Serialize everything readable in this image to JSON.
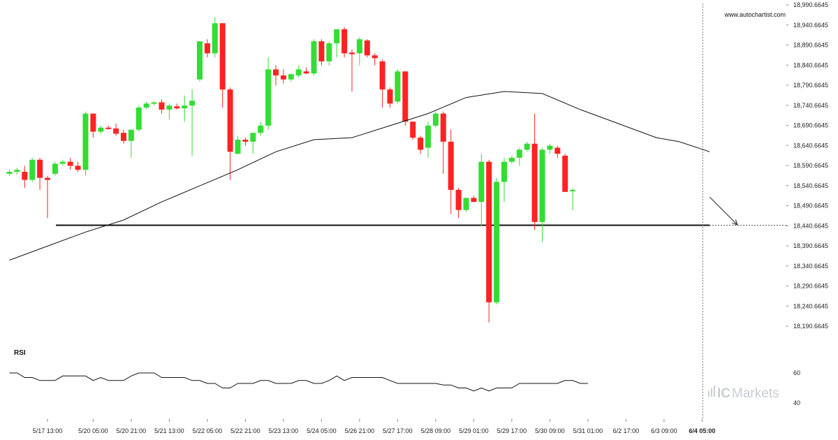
{
  "chart_data": [
    {
      "type": "candlestick",
      "source_label": "www.autochartist.com",
      "y_tick_labels": [
        "18,990.6645",
        "18,940.6645",
        "18,890.6645",
        "18,840.6645",
        "18,790.6645",
        "18,740.6645",
        "18,690.6645",
        "18,640.6645",
        "18,590.6645",
        "18,540.6645",
        "18,490.6645",
        "18,440.6645",
        "18,390.6645",
        "18,340.6645",
        "18,290.6645",
        "18,240.6645",
        "18,190.6645"
      ],
      "ylim": [
        18180,
        18995
      ],
      "x_tick_labels": [
        "5/17 13:00",
        "5/20 05:00",
        "5/20 21:00",
        "5/21 13:00",
        "5/22 05:00",
        "5/22 21:00",
        "5/23 13:00",
        "5/24 05:00",
        "5/26 21:00",
        "5/27 17:00",
        "5/28 09:00",
        "5/29 01:00",
        "5/29 17:00",
        "5/30 09:00",
        "5/31 01:00",
        "6/2 17:00",
        "6/3 09:00",
        "6/4 05:00"
      ],
      "x_tick_bar_index": [
        5,
        11,
        16,
        21,
        26,
        31,
        36,
        41,
        46,
        51,
        56,
        61,
        66,
        71,
        76,
        81,
        86,
        91
      ],
      "candles": [
        {
          "o": 18570,
          "h": 18580,
          "l": 18565,
          "c": 18575
        },
        {
          "o": 18575,
          "h": 18585,
          "l": 18568,
          "c": 18580
        },
        {
          "o": 18575,
          "h": 18590,
          "l": 18535,
          "c": 18555
        },
        {
          "o": 18555,
          "h": 18610,
          "l": 18550,
          "c": 18605
        },
        {
          "o": 18605,
          "h": 18610,
          "l": 18530,
          "c": 18560
        },
        {
          "o": 18560,
          "h": 18565,
          "l": 18460,
          "c": 18555
        },
        {
          "o": 18570,
          "h": 18600,
          "l": 18565,
          "c": 18595
        },
        {
          "o": 18595,
          "h": 18605,
          "l": 18590,
          "c": 18600
        },
        {
          "o": 18600,
          "h": 18610,
          "l": 18580,
          "c": 18590
        },
        {
          "o": 18590,
          "h": 18600,
          "l": 18575,
          "c": 18580
        },
        {
          "o": 18580,
          "h": 18725,
          "l": 18565,
          "c": 18720
        },
        {
          "o": 18720,
          "h": 18720,
          "l": 18660,
          "c": 18675
        },
        {
          "o": 18675,
          "h": 18690,
          "l": 18670,
          "c": 18685
        },
        {
          "o": 18685,
          "h": 18690,
          "l": 18680,
          "c": 18683
        },
        {
          "o": 18683,
          "h": 18695,
          "l": 18665,
          "c": 18670
        },
        {
          "o": 18672,
          "h": 18680,
          "l": 18645,
          "c": 18652
        },
        {
          "o": 18652,
          "h": 18680,
          "l": 18610,
          "c": 18680
        },
        {
          "o": 18680,
          "h": 18740,
          "l": 18675,
          "c": 18735
        },
        {
          "o": 18735,
          "h": 18750,
          "l": 18730,
          "c": 18745
        },
        {
          "o": 18745,
          "h": 18750,
          "l": 18740,
          "c": 18748
        },
        {
          "o": 18748,
          "h": 18755,
          "l": 18720,
          "c": 18730
        },
        {
          "o": 18730,
          "h": 18745,
          "l": 18705,
          "c": 18740
        },
        {
          "o": 18738,
          "h": 18745,
          "l": 18730,
          "c": 18733
        },
        {
          "o": 18733,
          "h": 18765,
          "l": 18700,
          "c": 18740
        },
        {
          "o": 18740,
          "h": 18780,
          "l": 18615,
          "c": 18752
        },
        {
          "o": 18805,
          "h": 18900,
          "l": 18800,
          "c": 18900
        },
        {
          "o": 18895,
          "h": 18905,
          "l": 18860,
          "c": 18870
        },
        {
          "o": 18870,
          "h": 18960,
          "l": 18860,
          "c": 18945
        },
        {
          "o": 18945,
          "h": 18945,
          "l": 18735,
          "c": 18780
        },
        {
          "o": 18780,
          "h": 18785,
          "l": 18555,
          "c": 18625
        },
        {
          "o": 18620,
          "h": 18665,
          "l": 18618,
          "c": 18655
        },
        {
          "o": 18655,
          "h": 18660,
          "l": 18640,
          "c": 18650
        },
        {
          "o": 18650,
          "h": 18670,
          "l": 18620,
          "c": 18672
        },
        {
          "o": 18672,
          "h": 18700,
          "l": 18665,
          "c": 18690
        },
        {
          "o": 18690,
          "h": 18860,
          "l": 18680,
          "c": 18830
        },
        {
          "o": 18830,
          "h": 18840,
          "l": 18790,
          "c": 18815
        },
        {
          "o": 18815,
          "h": 18830,
          "l": 18795,
          "c": 18805
        },
        {
          "o": 18805,
          "h": 18820,
          "l": 18800,
          "c": 18818
        },
        {
          "o": 18815,
          "h": 18840,
          "l": 18810,
          "c": 18830
        },
        {
          "o": 18825,
          "h": 18835,
          "l": 18818,
          "c": 18820
        },
        {
          "o": 18820,
          "h": 18905,
          "l": 18815,
          "c": 18900
        },
        {
          "o": 18900,
          "h": 18905,
          "l": 18840,
          "c": 18850
        },
        {
          "o": 18850,
          "h": 18900,
          "l": 18840,
          "c": 18895
        },
        {
          "o": 18895,
          "h": 18930,
          "l": 18860,
          "c": 18930
        },
        {
          "o": 18930,
          "h": 18935,
          "l": 18860,
          "c": 18870
        },
        {
          "o": 18872,
          "h": 18880,
          "l": 18775,
          "c": 18868
        },
        {
          "o": 18870,
          "h": 18910,
          "l": 18840,
          "c": 18905
        },
        {
          "o": 18902,
          "h": 18905,
          "l": 18860,
          "c": 18865
        },
        {
          "o": 18865,
          "h": 18870,
          "l": 18840,
          "c": 18858
        },
        {
          "o": 18850,
          "h": 18855,
          "l": 18735,
          "c": 18780
        },
        {
          "o": 18780,
          "h": 18785,
          "l": 18735,
          "c": 18745
        },
        {
          "o": 18750,
          "h": 18830,
          "l": 18745,
          "c": 18825
        },
        {
          "o": 18825,
          "h": 18825,
          "l": 18690,
          "c": 18700
        },
        {
          "o": 18700,
          "h": 18700,
          "l": 18655,
          "c": 18660
        },
        {
          "o": 18660,
          "h": 18665,
          "l": 18620,
          "c": 18630
        },
        {
          "o": 18635,
          "h": 18700,
          "l": 18610,
          "c": 18690
        },
        {
          "o": 18690,
          "h": 18725,
          "l": 18685,
          "c": 18720
        },
        {
          "o": 18720,
          "h": 18725,
          "l": 18570,
          "c": 18650
        },
        {
          "o": 18650,
          "h": 18680,
          "l": 18470,
          "c": 18530
        },
        {
          "o": 18530,
          "h": 18535,
          "l": 18460,
          "c": 18480
        },
        {
          "o": 18480,
          "h": 18510,
          "l": 18475,
          "c": 18510
        },
        {
          "o": 18510,
          "h": 18515,
          "l": 18500,
          "c": 18500
        },
        {
          "o": 18500,
          "h": 18620,
          "l": 18440,
          "c": 18600
        },
        {
          "o": 18600,
          "h": 18605,
          "l": 18200,
          "c": 18250
        },
        {
          "o": 18250,
          "h": 18560,
          "l": 18245,
          "c": 18550
        },
        {
          "o": 18550,
          "h": 18610,
          "l": 18500,
          "c": 18600
        },
        {
          "o": 18600,
          "h": 18615,
          "l": 18595,
          "c": 18610
        },
        {
          "o": 18610,
          "h": 18635,
          "l": 18590,
          "c": 18630
        },
        {
          "o": 18630,
          "h": 18650,
          "l": 18625,
          "c": 18645
        },
        {
          "o": 18645,
          "h": 18720,
          "l": 18430,
          "c": 18450
        },
        {
          "o": 18450,
          "h": 18635,
          "l": 18400,
          "c": 18630
        },
        {
          "o": 18630,
          "h": 18645,
          "l": 18620,
          "c": 18640
        },
        {
          "o": 18635,
          "h": 18640,
          "l": 18610,
          "c": 18620
        },
        {
          "o": 18615,
          "h": 18620,
          "l": 18525,
          "c": 18525
        },
        {
          "o": 18528,
          "h": 18535,
          "l": 18480,
          "c": 18530
        }
      ],
      "moving_average": [
        [
          0,
          18355
        ],
        [
          5,
          18390
        ],
        [
          10,
          18425
        ],
        [
          15,
          18455
        ],
        [
          20,
          18500
        ],
        [
          25,
          18540
        ],
        [
          30,
          18580
        ],
        [
          35,
          18625
        ],
        [
          40,
          18655
        ],
        [
          45,
          18660
        ],
        [
          50,
          18690
        ],
        [
          55,
          18720
        ],
        [
          60,
          18760
        ],
        [
          65,
          18775
        ],
        [
          70,
          18770
        ],
        [
          75,
          18730
        ],
        [
          80,
          18695
        ],
        [
          85,
          18660
        ],
        [
          88,
          18650
        ],
        [
          92,
          18625
        ]
      ],
      "support_level": 18442,
      "forecast": {
        "from": [
          92,
          18512
        ],
        "to": [
          96,
          18443
        ]
      },
      "last_bar_index": 91,
      "colors": {
        "bull": "#33dd33",
        "bear": "#ff2222",
        "ma": "#111111",
        "support": "#111111"
      }
    },
    {
      "type": "line",
      "label": "RSI",
      "y_tick_labels": [
        "60",
        "40"
      ],
      "ylim": [
        30,
        70
      ],
      "values": [
        60,
        60,
        57,
        57,
        55,
        55,
        55,
        58,
        58,
        58,
        58,
        55,
        57,
        55,
        55,
        55,
        58,
        60,
        60,
        60,
        57,
        57,
        57,
        57,
        55,
        55,
        53,
        53,
        50,
        50,
        53,
        53,
        53,
        55,
        55,
        53,
        53,
        53,
        55,
        55,
        53,
        53,
        55,
        58,
        55,
        57,
        57,
        57,
        57,
        57,
        55,
        53,
        53,
        53,
        53,
        53,
        53,
        52,
        52,
        50,
        50,
        48,
        50,
        48,
        50,
        50,
        50,
        53,
        53,
        53,
        53,
        53,
        53,
        55,
        55,
        53,
        53
      ],
      "colors": {
        "line": "#111111"
      }
    }
  ],
  "branding": {
    "ic": "IC",
    "markets": "Markets"
  }
}
